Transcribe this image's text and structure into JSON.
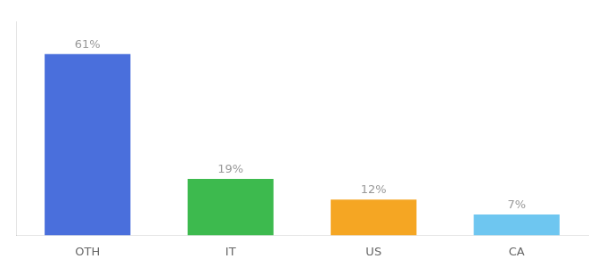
{
  "chart_data": {
    "type": "bar",
    "categories": [
      "OTH",
      "IT",
      "US",
      "CA"
    ],
    "values": [
      61,
      19,
      12,
      7
    ],
    "value_labels": [
      "61%",
      "19%",
      "12%",
      "7%"
    ],
    "colors": [
      "#4a6fdc",
      "#3dba4e",
      "#f5a623",
      "#6ec6f0"
    ],
    "ylim": [
      0,
      72
    ],
    "grid": false,
    "tick_labels": "x",
    "data_labels": true
  }
}
